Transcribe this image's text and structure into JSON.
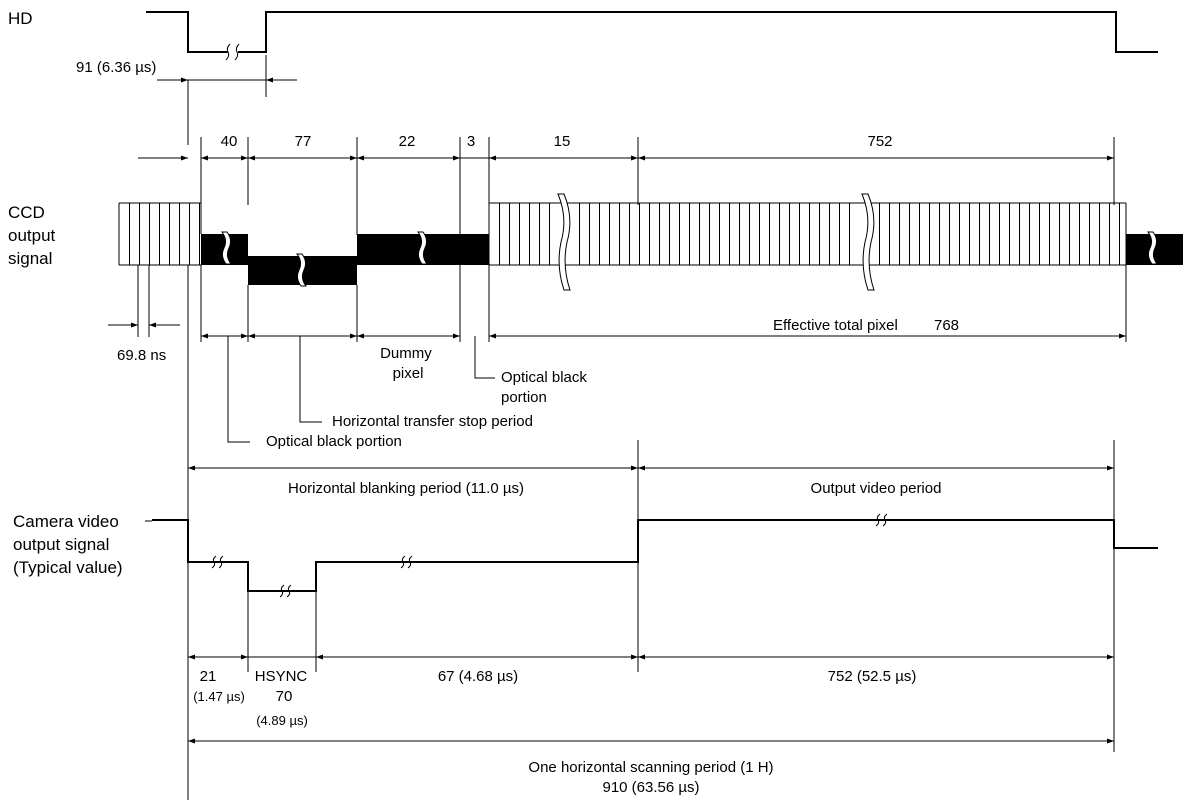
{
  "signals": {
    "hd": "HD",
    "ccd": [
      "CCD",
      "output",
      "signal"
    ],
    "camera": [
      "Camera video",
      "output signal",
      "(Typical value)"
    ]
  },
  "hd_width": "91 (6.36 µs)",
  "pixel_counts": [
    "40",
    "77",
    "22",
    "3",
    "15",
    "752"
  ],
  "pixel_period": "69.8 ns",
  "regions": {
    "dummy_pixel": [
      "Dummy",
      "pixel"
    ],
    "optical_black_right": [
      "Optical black",
      "portion"
    ],
    "horizontal_transfer_stop": "Horizontal transfer stop period",
    "optical_black_left": "Optical black portion",
    "effective_total_pixel": "Effective total pixel",
    "effective_total_pixel_count": "768"
  },
  "periods": {
    "blanking": "Horizontal blanking period (11.0 µs)",
    "output_video": "Output video period"
  },
  "timing": {
    "front": "21",
    "front_time": "(1.47 µs)",
    "hsync_label": "HSYNC",
    "hsync_count": "70",
    "hsync_time": "(4.89 µs)",
    "back_porch": "67 (4.68 µs)",
    "video": "752 (52.5 µs)"
  },
  "one_h": {
    "label": "One horizontal scanning period (1 H)",
    "value": "910 (63.56 µs)"
  }
}
